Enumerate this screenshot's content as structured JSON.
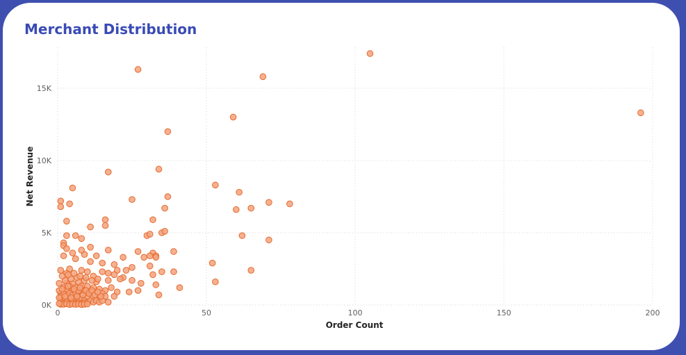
{
  "title": "Merchant Distribution",
  "colors": {
    "background": "#3f4fb0",
    "card": "#ffffff",
    "title": "#3a4bb5",
    "point_fill": "#f4a27e",
    "point_stroke": "#e46b2c",
    "grid": "#d6d6d6"
  },
  "chart_data": {
    "type": "scatter",
    "title": "Merchant Distribution",
    "xlabel": "Order Count",
    "ylabel": "Net Revenue",
    "xlim": [
      0,
      200
    ],
    "ylim": [
      0,
      17500
    ],
    "x_ticks": [
      0,
      50,
      100,
      150,
      200
    ],
    "x_tick_labels": [
      "0",
      "50",
      "100",
      "150",
      "200"
    ],
    "y_ticks": [
      0,
      5000,
      10000,
      15000
    ],
    "y_tick_labels": [
      "0K",
      "5K",
      "10K",
      "15K"
    ],
    "grid": true,
    "legend": "none",
    "points": [
      [
        105,
        17400
      ],
      [
        27,
        16300
      ],
      [
        69,
        15800
      ],
      [
        196,
        13300
      ],
      [
        59,
        13000
      ],
      [
        37,
        12000
      ],
      [
        17,
        9200
      ],
      [
        34,
        9400
      ],
      [
        53,
        8300
      ],
      [
        61,
        7800
      ],
      [
        5,
        8100
      ],
      [
        1,
        7200
      ],
      [
        1,
        6800
      ],
      [
        4,
        7000
      ],
      [
        25,
        7300
      ],
      [
        37,
        7500
      ],
      [
        36,
        6700
      ],
      [
        60,
        6600
      ],
      [
        65,
        6700
      ],
      [
        71,
        7100
      ],
      [
        78,
        7000
      ],
      [
        3,
        5800
      ],
      [
        16,
        5900
      ],
      [
        16,
        5500
      ],
      [
        11,
        5400
      ],
      [
        32,
        5900
      ],
      [
        35,
        5000
      ],
      [
        36,
        5100
      ],
      [
        30,
        4800
      ],
      [
        31,
        4900
      ],
      [
        62,
        4800
      ],
      [
        71,
        4500
      ],
      [
        3,
        4800
      ],
      [
        6,
        4800
      ],
      [
        8,
        4600
      ],
      [
        2,
        4300
      ],
      [
        2,
        4100
      ],
      [
        3,
        3900
      ],
      [
        11,
        4000
      ],
      [
        17,
        3800
      ],
      [
        27,
        3700
      ],
      [
        32,
        3600
      ],
      [
        39,
        3700
      ],
      [
        5,
        3600
      ],
      [
        9,
        3500
      ],
      [
        8,
        3800
      ],
      [
        13,
        3400
      ],
      [
        2,
        3400
      ],
      [
        6,
        3200
      ],
      [
        22,
        3300
      ],
      [
        29,
        3300
      ],
      [
        31,
        3400
      ],
      [
        33,
        3400
      ],
      [
        33,
        3300
      ],
      [
        11,
        3000
      ],
      [
        15,
        2900
      ],
      [
        19,
        2800
      ],
      [
        31,
        2700
      ],
      [
        25,
        2600
      ],
      [
        52,
        2900
      ],
      [
        1,
        2400
      ],
      [
        4,
        2500
      ],
      [
        8,
        2400
      ],
      [
        10,
        2300
      ],
      [
        15,
        2300
      ],
      [
        17,
        2200
      ],
      [
        20,
        2400
      ],
      [
        23,
        2400
      ],
      [
        35,
        2300
      ],
      [
        39,
        2300
      ],
      [
        65,
        2400
      ],
      [
        3,
        2200
      ],
      [
        12,
        2000
      ],
      [
        19,
        2100
      ],
      [
        22,
        1900
      ],
      [
        32,
        2100
      ],
      [
        25,
        1700
      ],
      [
        28,
        1500
      ],
      [
        33,
        1400
      ],
      [
        41,
        1200
      ],
      [
        53,
        1600
      ],
      [
        21,
        1800
      ],
      [
        17,
        1700
      ],
      [
        13,
        1600
      ],
      [
        9,
        1700
      ],
      [
        7,
        1600
      ],
      [
        5,
        1500
      ],
      [
        3,
        1500
      ],
      [
        2,
        1200
      ],
      [
        4,
        1300
      ],
      [
        6,
        1200
      ],
      [
        8,
        1100
      ],
      [
        10,
        1300
      ],
      [
        12,
        1200
      ],
      [
        14,
        1100
      ],
      [
        16,
        1000
      ],
      [
        18,
        1200
      ],
      [
        20,
        900
      ],
      [
        24,
        900
      ],
      [
        27,
        1000
      ],
      [
        34,
        700
      ],
      [
        15,
        800
      ],
      [
        11,
        900
      ],
      [
        9,
        800
      ],
      [
        7,
        900
      ],
      [
        5,
        1000
      ],
      [
        3,
        900
      ],
      [
        1,
        800
      ],
      [
        2,
        700
      ],
      [
        4,
        600
      ],
      [
        6,
        700
      ],
      [
        8,
        600
      ],
      [
        10,
        500
      ],
      [
        12,
        600
      ],
      [
        14,
        500
      ],
      [
        16,
        600
      ],
      [
        19,
        600
      ],
      [
        1,
        400
      ],
      [
        2,
        300
      ],
      [
        3,
        500
      ],
      [
        4,
        400
      ],
      [
        5,
        300
      ],
      [
        6,
        400
      ],
      [
        7,
        300
      ],
      [
        8,
        400
      ],
      [
        9,
        300
      ],
      [
        10,
        200
      ],
      [
        11,
        300
      ],
      [
        12,
        200
      ],
      [
        13,
        300
      ],
      [
        14,
        200
      ],
      [
        15,
        300
      ],
      [
        17,
        200
      ],
      [
        1,
        200
      ],
      [
        2,
        100
      ],
      [
        3,
        200
      ],
      [
        4,
        100
      ],
      [
        5,
        200
      ],
      [
        6,
        100
      ],
      [
        7,
        150
      ],
      [
        8,
        100
      ],
      [
        9,
        150
      ],
      [
        1,
        50
      ],
      [
        2,
        50
      ],
      [
        3,
        80
      ],
      [
        4,
        30
      ],
      [
        5,
        60
      ],
      [
        6,
        40
      ],
      [
        7,
        60
      ],
      [
        8,
        30
      ],
      [
        9,
        50
      ],
      [
        10,
        70
      ],
      [
        1,
        600
      ],
      [
        2,
        900
      ],
      [
        3,
        1100
      ],
      [
        4,
        800
      ],
      [
        5,
        700
      ],
      [
        6,
        900
      ],
      [
        7,
        1000
      ],
      [
        8,
        1300
      ],
      [
        9,
        1000
      ],
      [
        0.5,
        1000
      ],
      [
        0.5,
        500
      ],
      [
        0.5,
        1500
      ],
      [
        0.5,
        100
      ],
      [
        1.5,
        1100
      ],
      [
        2.5,
        600
      ],
      [
        3.5,
        1300
      ],
      [
        4.5,
        500
      ],
      [
        5.5,
        1100
      ],
      [
        6.5,
        600
      ],
      [
        7.5,
        1200
      ],
      [
        8.5,
        700
      ],
      [
        9.5,
        1000
      ],
      [
        10.5,
        800
      ],
      [
        11.5,
        1000
      ],
      [
        12.5,
        700
      ],
      [
        13.5,
        900
      ],
      [
        14.5,
        600
      ],
      [
        2.5,
        1700
      ],
      [
        4.5,
        1800
      ],
      [
        6.5,
        1900
      ],
      [
        1.5,
        2000
      ],
      [
        3.5,
        2100
      ],
      [
        5.5,
        2200
      ],
      [
        7.5,
        2000
      ],
      [
        9.5,
        1900
      ],
      [
        11.5,
        1700
      ],
      [
        13.5,
        1800
      ]
    ]
  }
}
